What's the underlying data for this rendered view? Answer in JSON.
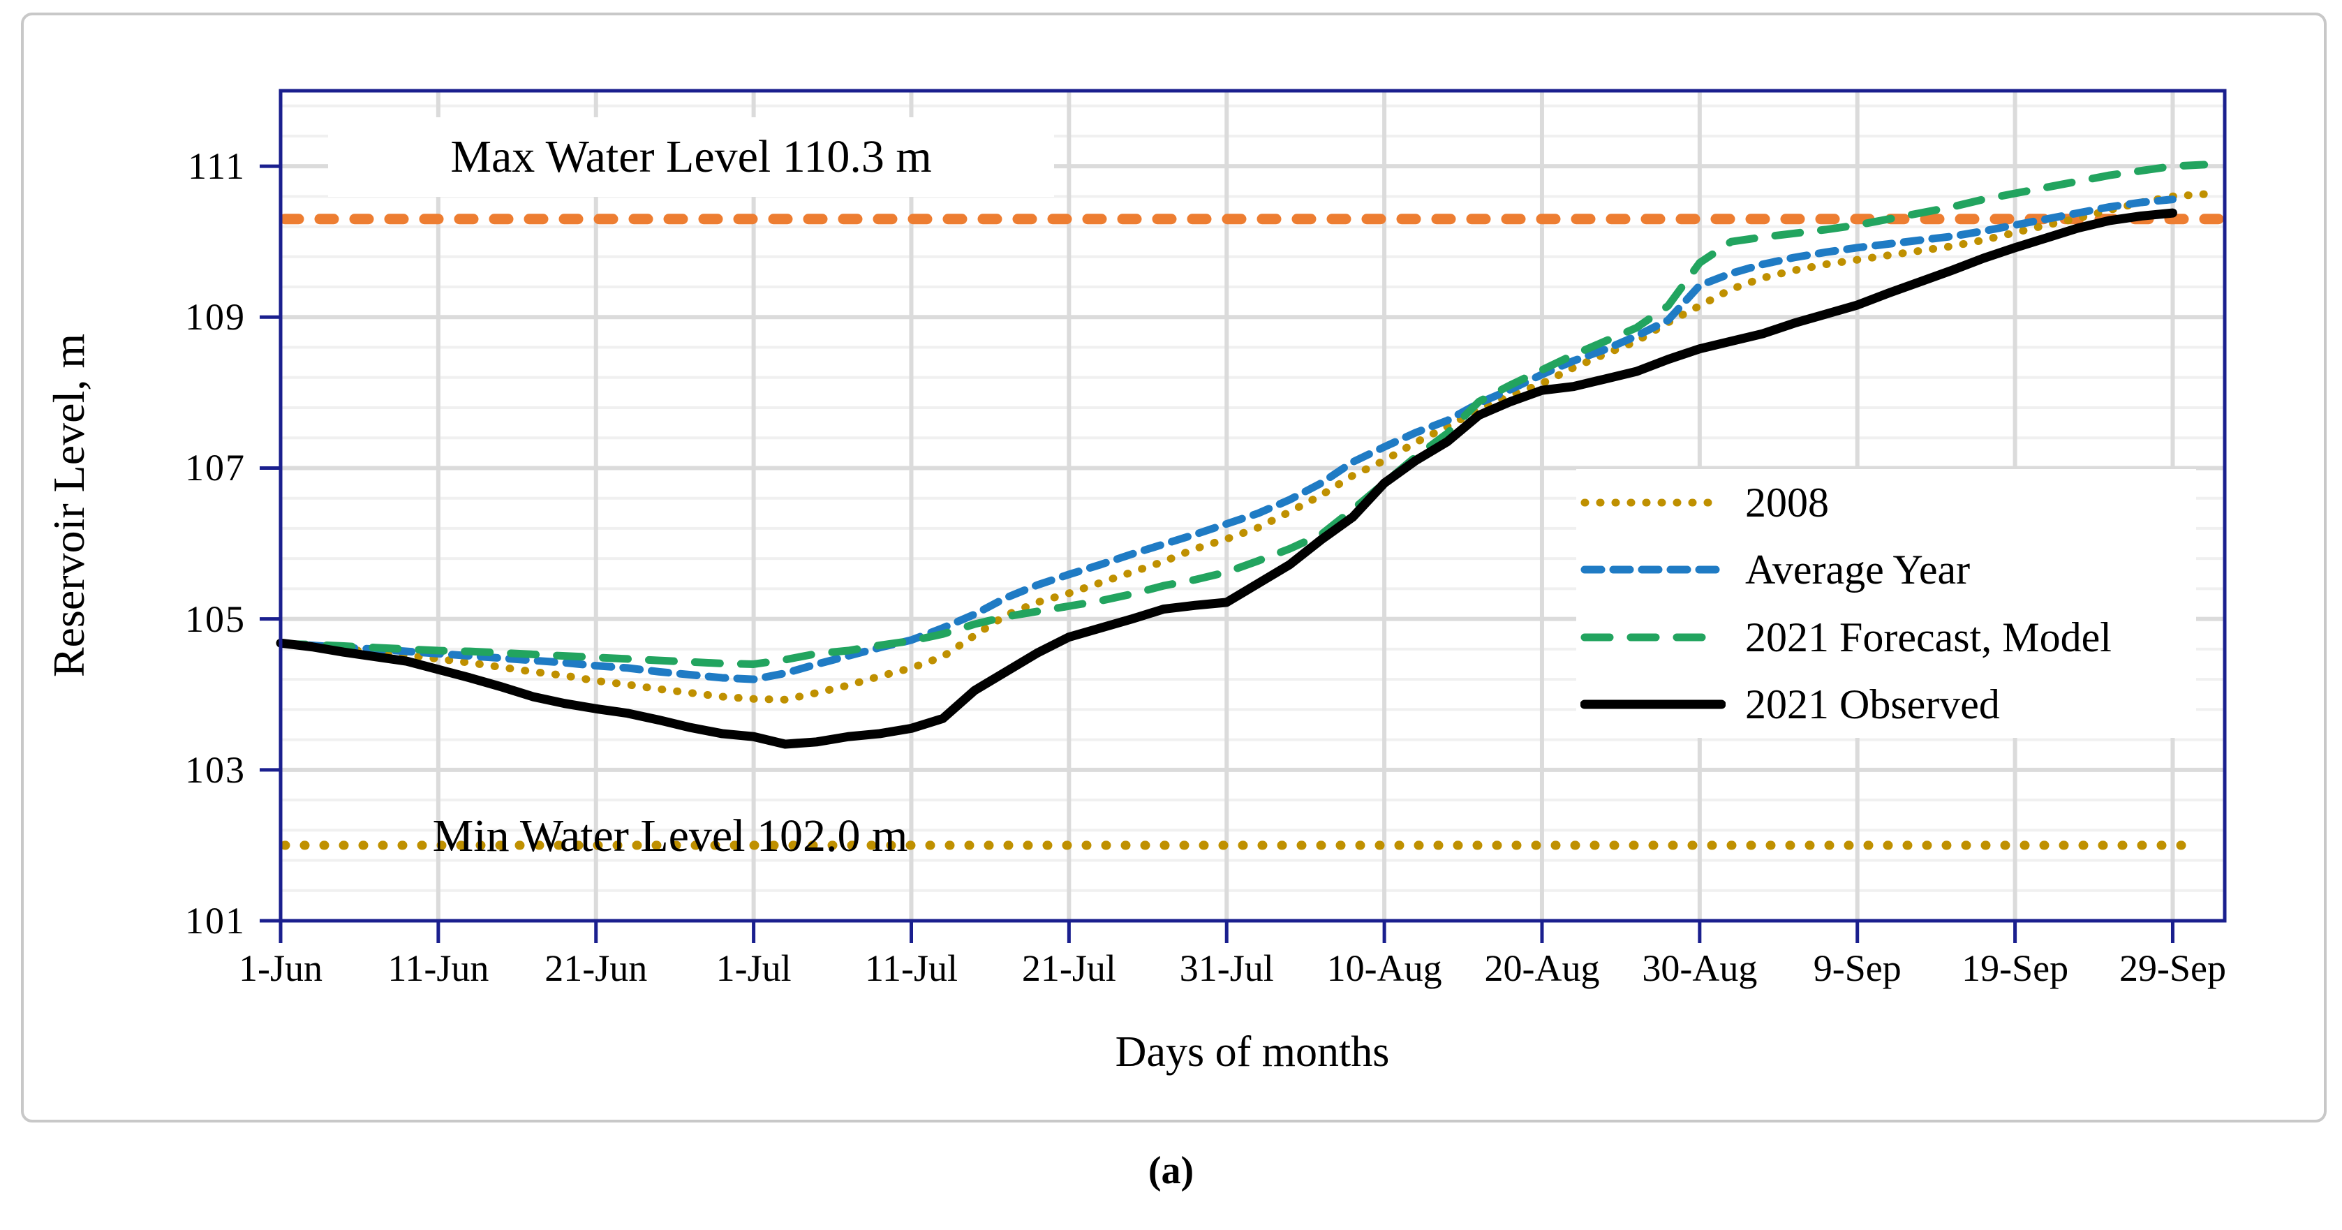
{
  "figure": {
    "caption": "(a)"
  },
  "chart_data": {
    "type": "line",
    "title": "",
    "xlabel": "Days of months",
    "ylabel": "Reservoir Level, m",
    "grid": "major+minor",
    "legend_position": "inside-right",
    "ylim": [
      101,
      112
    ],
    "y_major_ticks": [
      101,
      103,
      105,
      107,
      109,
      111
    ],
    "y_minor_step": 0.4,
    "xlim_days": [
      0,
      123.3
    ],
    "x_tick_days": [
      0,
      10,
      20,
      30,
      40,
      50,
      60,
      70,
      80,
      90,
      100,
      110,
      120
    ],
    "x_tick_labels": [
      "1-Jun",
      "11-Jun",
      "21-Jun",
      "1-Jul",
      "11-Jul",
      "21-Jul",
      "31-Jul",
      "10-Aug",
      "20-Aug",
      "30-Aug",
      "9-Sep",
      "19-Sep",
      "29-Sep"
    ],
    "x": [
      0,
      2,
      4,
      6,
      8,
      10,
      12,
      14,
      16,
      18,
      20,
      22,
      24,
      26,
      28,
      30,
      32,
      34,
      36,
      38,
      40,
      42,
      44,
      46,
      48,
      50,
      52,
      54,
      56,
      58,
      60,
      62,
      64,
      66,
      68,
      70,
      72,
      74,
      76,
      78,
      80,
      82,
      84,
      86,
      88,
      90,
      92,
      94,
      96,
      98,
      100,
      102,
      104,
      106,
      108,
      110,
      112,
      114,
      116,
      118,
      120,
      122
    ],
    "series": [
      {
        "name": "2008",
        "color": "#BF9000",
        "style": "dotted",
        "values": [
          104.68,
          104.64,
          104.6,
          104.56,
          104.52,
          104.47,
          104.42,
          104.36,
          104.3,
          104.25,
          104.18,
          104.13,
          104.07,
          104.02,
          103.97,
          103.94,
          103.93,
          104.02,
          104.12,
          104.24,
          104.35,
          104.5,
          104.78,
          105.05,
          105.22,
          105.34,
          105.48,
          105.62,
          105.76,
          105.93,
          106.06,
          106.21,
          106.42,
          106.64,
          106.9,
          107.1,
          107.34,
          107.55,
          107.78,
          107.96,
          108.12,
          108.33,
          108.51,
          108.68,
          108.93,
          109.15,
          109.37,
          109.52,
          109.62,
          109.7,
          109.76,
          109.82,
          109.88,
          109.94,
          110.02,
          110.12,
          110.22,
          110.31,
          110.42,
          110.52,
          110.6,
          110.63
        ]
      },
      {
        "name": "Average Year",
        "color": "#1F7BC4",
        "style": "dashed-short",
        "values": [
          104.67,
          104.65,
          104.62,
          104.6,
          104.57,
          104.54,
          104.51,
          104.48,
          104.45,
          104.42,
          104.38,
          104.35,
          104.3,
          104.26,
          104.22,
          104.2,
          104.28,
          104.4,
          104.51,
          104.62,
          104.72,
          104.88,
          105.06,
          105.28,
          105.45,
          105.59,
          105.72,
          105.86,
          105.99,
          106.12,
          106.26,
          106.4,
          106.58,
          106.8,
          107.08,
          107.28,
          107.47,
          107.63,
          107.86,
          108.04,
          108.24,
          108.42,
          108.57,
          108.75,
          108.96,
          109.42,
          109.58,
          109.7,
          109.79,
          109.86,
          109.92,
          109.97,
          110.02,
          110.07,
          110.14,
          110.22,
          110.3,
          110.38,
          110.46,
          110.52,
          110.56,
          null
        ]
      },
      {
        "name": "2021 Forecast, Model",
        "color": "#22A45F",
        "style": "dashed-long",
        "values": [
          104.67,
          104.66,
          104.64,
          104.62,
          104.6,
          104.58,
          104.57,
          104.55,
          104.53,
          104.51,
          104.49,
          104.47,
          104.45,
          104.43,
          104.41,
          104.4,
          104.46,
          104.54,
          104.58,
          104.65,
          104.71,
          104.8,
          104.93,
          105.03,
          105.1,
          105.17,
          105.24,
          105.33,
          105.44,
          105.52,
          105.62,
          105.77,
          105.93,
          106.12,
          106.45,
          106.8,
          107.15,
          107.46,
          107.88,
          108.1,
          108.3,
          108.5,
          108.68,
          108.86,
          109.15,
          109.72,
          110.0,
          110.06,
          110.11,
          110.16,
          110.22,
          110.3,
          110.38,
          110.46,
          110.56,
          110.64,
          110.72,
          110.8,
          110.88,
          110.94,
          111.0,
          111.02
        ]
      },
      {
        "name": "2021 Observed",
        "color": "#000000",
        "style": "solid",
        "values": [
          104.68,
          104.63,
          104.56,
          104.5,
          104.44,
          104.33,
          104.22,
          104.1,
          103.97,
          103.88,
          103.81,
          103.75,
          103.66,
          103.56,
          103.48,
          103.44,
          103.34,
          103.37,
          103.44,
          103.48,
          103.55,
          103.68,
          104.05,
          104.3,
          104.55,
          104.76,
          104.88,
          105.0,
          105.13,
          105.18,
          105.22,
          105.47,
          105.72,
          106.05,
          106.35,
          106.8,
          107.1,
          107.35,
          107.7,
          107.88,
          108.03,
          108.08,
          108.18,
          108.28,
          108.44,
          108.58,
          108.68,
          108.78,
          108.92,
          109.04,
          109.16,
          109.32,
          109.47,
          109.62,
          109.78,
          109.92,
          110.05,
          110.18,
          110.28,
          110.34,
          110.38,
          null
        ]
      }
    ],
    "reference_lines": [
      {
        "label": "Max Water Level 110.3 m",
        "value": 110.3,
        "color": "#ED7D31",
        "style": "ref-dashed"
      },
      {
        "label": "Min Water Level 102.0 m",
        "value": 102.0,
        "color": "#BF9000",
        "style": "ref-dotted"
      }
    ],
    "annotations": {
      "max_label": "Max Water Level 110.3 m",
      "min_label": "Min Water Level 102.0 m"
    }
  },
  "style_colors": {
    "plot_border_navy": "#1a1f8e",
    "major_grid": "#dbdbdb",
    "minor_grid": "#f0f0f0",
    "figure_border": "#c8c8c8"
  }
}
